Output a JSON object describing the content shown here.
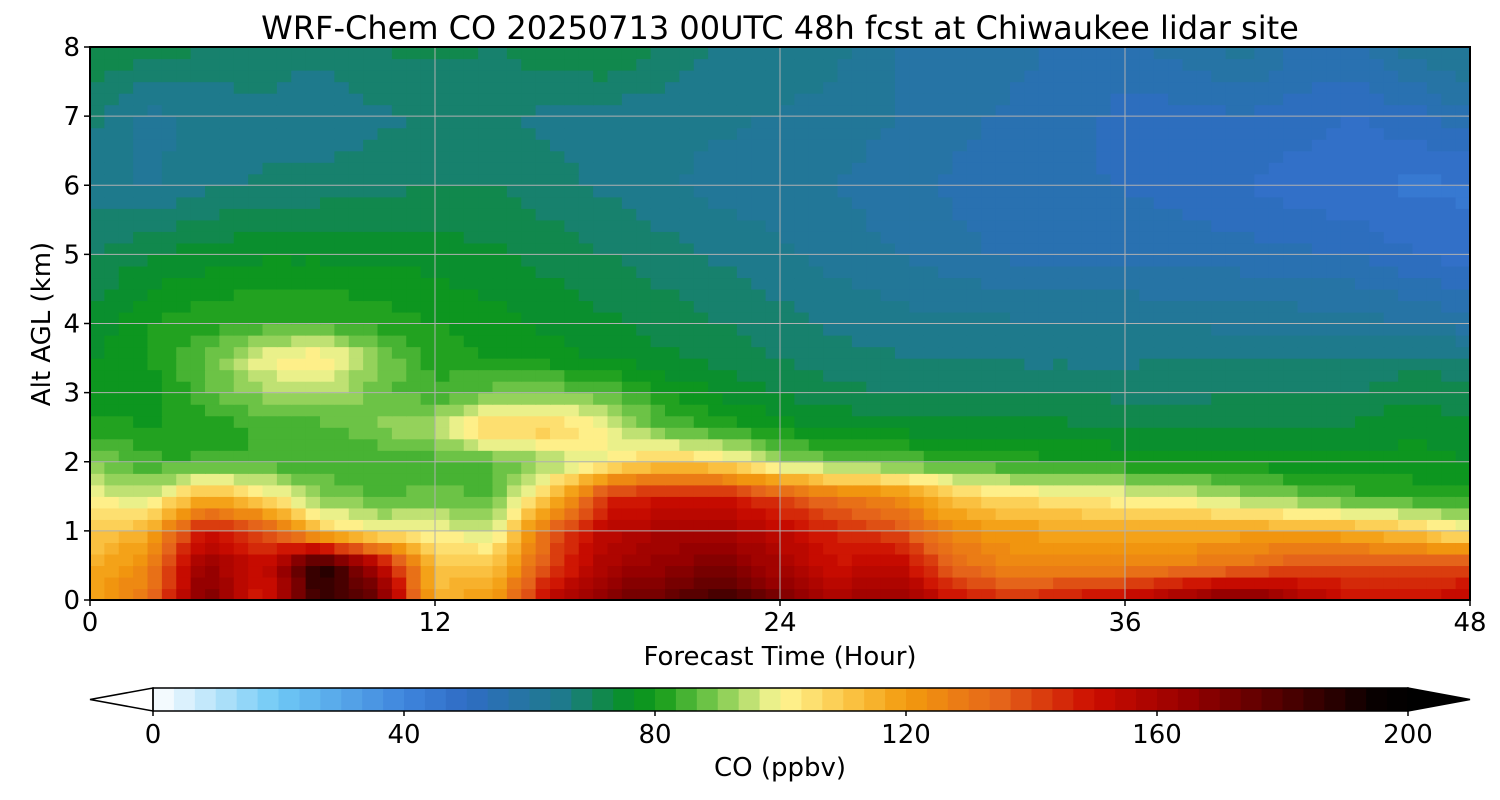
{
  "chart_data": {
    "type": "heatmap",
    "title": "WRF-Chem CO  20250713 00UTC 48h fcst at Chiwaukee lidar site",
    "xlabel": "Forecast Time (Hour)",
    "ylabel": "Alt AGL (km)",
    "xlim": [
      0,
      48
    ],
    "ylim": [
      0,
      8
    ],
    "xticks": [
      0,
      12,
      24,
      36,
      48
    ],
    "yticks": [
      0,
      1,
      2,
      3,
      4,
      5,
      6,
      7,
      8
    ],
    "grid": true,
    "colorbar": {
      "label": "CO  (ppbv)",
      "range": [
        0,
        200
      ],
      "ticks": [
        0,
        40,
        80,
        120,
        160,
        200
      ],
      "extend": "both",
      "stops": [
        {
          "v": 0,
          "c": "#ffffff"
        },
        {
          "v": 20,
          "c": "#6ec8f5"
        },
        {
          "v": 40,
          "c": "#3f85dd"
        },
        {
          "v": 50,
          "c": "#2f6cc4"
        },
        {
          "v": 65,
          "c": "#1e7a8c"
        },
        {
          "v": 75,
          "c": "#0a8f2e"
        },
        {
          "v": 80,
          "c": "#0f9a17"
        },
        {
          "v": 90,
          "c": "#7fcb4f"
        },
        {
          "v": 100,
          "c": "#fff796"
        },
        {
          "v": 110,
          "c": "#fbc84a"
        },
        {
          "v": 120,
          "c": "#f39b0e"
        },
        {
          "v": 135,
          "c": "#e5641a"
        },
        {
          "v": 150,
          "c": "#cc0c00"
        },
        {
          "v": 165,
          "c": "#960000"
        },
        {
          "v": 180,
          "c": "#500000"
        },
        {
          "v": 195,
          "c": "#080000"
        },
        {
          "v": 200,
          "c": "#000000"
        }
      ]
    },
    "x_hours": [
      0,
      2,
      4,
      6,
      8,
      10,
      12,
      14,
      16,
      18,
      20,
      22,
      24,
      26,
      28,
      30,
      32,
      34,
      36,
      38,
      40,
      42,
      44,
      46,
      48
    ],
    "y_km": [
      0,
      0.5,
      1,
      1.5,
      2,
      2.5,
      3,
      3.5,
      4,
      5,
      6,
      7,
      8
    ],
    "values_ppbv": [
      [
        118,
        130,
        172,
        145,
        185,
        175,
        115,
        120,
        155,
        170,
        175,
        185,
        170,
        160,
        165,
        150,
        145,
        150,
        155,
        165,
        175,
        160,
        150,
        150,
        155
      ],
      [
        115,
        125,
        165,
        150,
        192,
        160,
        110,
        110,
        140,
        160,
        165,
        170,
        160,
        150,
        155,
        135,
        125,
        125,
        125,
        128,
        130,
        140,
        140,
        140,
        140
      ],
      [
        108,
        115,
        150,
        140,
        110,
        100,
        100,
        96,
        135,
        155,
        160,
        160,
        155,
        145,
        140,
        125,
        120,
        118,
        118,
        118,
        118,
        118,
        115,
        110,
        100
      ],
      [
        100,
        95,
        115,
        105,
        90,
        86,
        88,
        86,
        110,
        145,
        150,
        150,
        140,
        130,
        125,
        110,
        105,
        103,
        100,
        98,
        92,
        88,
        84,
        82,
        82
      ],
      [
        90,
        84,
        84,
        84,
        84,
        83,
        85,
        86,
        92,
        100,
        110,
        105,
        92,
        88,
        86,
        84,
        82,
        80,
        80,
        78,
        78,
        78,
        78,
        78,
        77
      ],
      [
        82,
        80,
        80,
        84,
        85,
        90,
        95,
        110,
        110,
        100,
        86,
        82,
        78,
        76,
        75,
        74,
        74,
        74,
        73,
        73,
        73,
        73,
        74,
        76,
        74
      ],
      [
        78,
        78,
        86,
        92,
        95,
        88,
        84,
        88,
        90,
        86,
        80,
        76,
        73,
        71,
        70,
        70,
        70,
        70,
        69,
        69,
        70,
        70,
        70,
        73,
        71
      ],
      [
        76,
        80,
        86,
        100,
        105,
        90,
        82,
        80,
        78,
        76,
        74,
        72,
        70,
        68,
        67,
        67,
        66,
        66,
        66,
        67,
        67,
        67,
        67,
        68,
        68
      ],
      [
        74,
        80,
        82,
        84,
        84,
        82,
        80,
        78,
        76,
        74,
        72,
        70,
        68,
        66,
        65,
        64,
        64,
        63,
        63,
        63,
        62,
        62,
        62,
        60,
        58
      ],
      [
        70,
        73,
        75,
        76,
        76,
        76,
        75,
        74,
        72,
        70,
        68,
        66,
        64,
        62,
        60,
        58,
        56,
        56,
        56,
        55,
        55,
        54,
        53,
        50,
        48
      ],
      [
        65,
        63,
        66,
        67,
        68,
        69,
        70,
        70,
        68,
        66,
        64,
        62,
        61,
        60,
        58,
        56,
        55,
        54,
        53,
        52,
        50,
        48,
        47,
        46,
        46
      ],
      [
        68,
        62,
        64,
        66,
        64,
        66,
        67,
        67,
        66,
        65,
        64,
        64,
        63,
        62,
        60,
        58,
        56,
        55,
        52,
        52,
        53,
        52,
        50,
        52,
        56
      ],
      [
        72,
        72,
        70,
        68,
        68,
        70,
        71,
        70,
        72,
        74,
        70,
        66,
        66,
        64,
        60,
        58,
        58,
        56,
        56,
        58,
        62,
        56,
        56,
        62,
        64
      ]
    ]
  }
}
